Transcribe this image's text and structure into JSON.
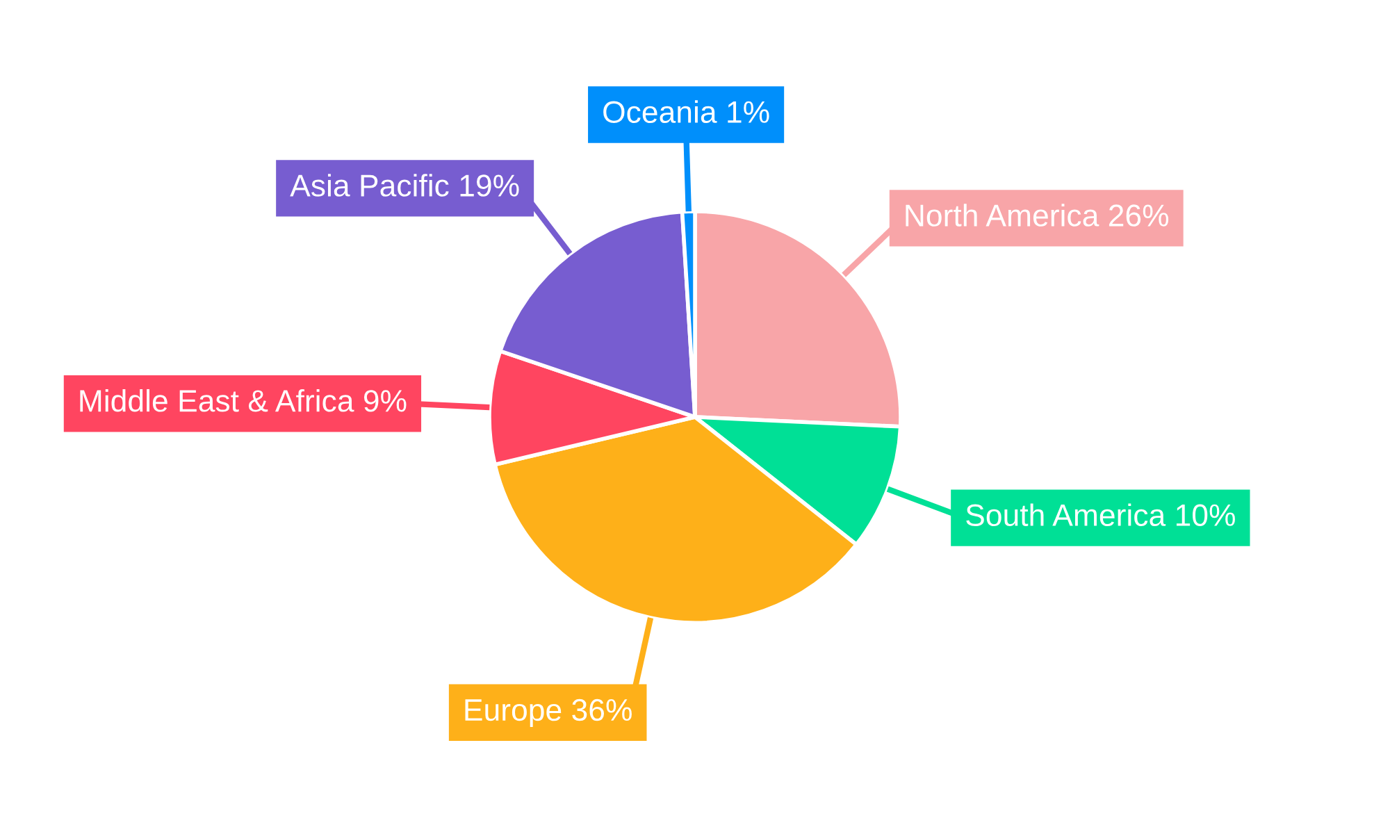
{
  "chart_data": {
    "type": "pie",
    "categories": [
      "North America",
      "South America",
      "Europe",
      "Middle East & Africa",
      "Asia Pacific",
      "Oceania"
    ],
    "values": [
      26,
      10,
      36,
      9,
      19,
      1
    ],
    "value_labels": [
      "26%",
      "10%",
      "36%",
      "9%",
      "19%",
      "1%"
    ],
    "colors": [
      "#f8a5a8",
      "#00e096",
      "#feb019",
      "#ff4560",
      "#775dd0",
      "#008ffb"
    ]
  }
}
